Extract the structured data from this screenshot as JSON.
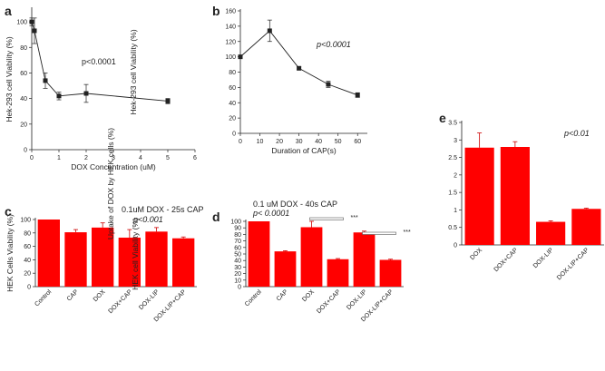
{
  "colors": {
    "bar": "#ff0000",
    "line": "#222222",
    "err": "#cc0000"
  },
  "chart_data": [
    {
      "panel": "a",
      "type": "line",
      "xlabel": "DOX Concentration (uM)",
      "ylabel": "Hek-293 cell Viability (%)",
      "xlim": [
        0,
        6
      ],
      "ylim": [
        0,
        110
      ],
      "xticks": [
        0,
        1,
        2,
        3,
        4,
        5,
        6
      ],
      "yticks": [
        0,
        20,
        40,
        60,
        80,
        100
      ],
      "x": [
        0,
        0.1,
        0.5,
        1,
        2,
        5
      ],
      "y": [
        100,
        93,
        54,
        42,
        44,
        38
      ],
      "err": [
        3,
        10,
        6,
        3,
        7,
        2
      ],
      "annotation": "p<0.0001"
    },
    {
      "panel": "b",
      "type": "line",
      "xlabel": "Duration of CAP(s)",
      "ylabel": "Hek-293 cell Viability (%)",
      "xlim": [
        0,
        65
      ],
      "ylim": [
        0,
        160
      ],
      "xticks": [
        0,
        10,
        20,
        30,
        40,
        50,
        60
      ],
      "yticks": [
        0,
        20,
        40,
        60,
        80,
        100,
        120,
        140,
        160
      ],
      "x": [
        0,
        15,
        30,
        45,
        60
      ],
      "y": [
        100,
        134,
        85,
        64,
        50
      ],
      "err": [
        0,
        14,
        2,
        4,
        3
      ],
      "annotation": "p<0.0001"
    },
    {
      "panel": "c",
      "type": "bar",
      "ylabel": "HEK Cells   Viability (%)",
      "ylim": [
        0,
        100
      ],
      "yticks": [
        0,
        20,
        40,
        60,
        80,
        100
      ],
      "categories": [
        "Control",
        "CAP",
        "DOX",
        "DOX+CAP",
        "DOX-LIP",
        "DOX-LIP+CAP"
      ],
      "values": [
        100,
        81,
        88,
        73,
        82,
        72
      ],
      "err": [
        0,
        4,
        7,
        12,
        6,
        2
      ],
      "annotation_title": "0.1uM DOX - 25s CAP",
      "annotation": "p<0.001"
    },
    {
      "panel": "d",
      "type": "bar",
      "ylabel": "HEK cell Viability (%)",
      "ylim": [
        0,
        100
      ],
      "yticks": [
        0,
        10,
        20,
        30,
        40,
        50,
        60,
        70,
        80,
        90,
        100
      ],
      "categories": [
        "Control",
        "CAP",
        "DOX",
        "DOX+CAP",
        "DOX-LIP",
        "DOX-LIP+CAP"
      ],
      "values": [
        100,
        54,
        91,
        42,
        83,
        41
      ],
      "err": [
        0,
        1,
        9,
        1,
        2,
        1
      ],
      "annotation_title": "0.1 uM DOX - 40s CAP",
      "annotation": "p< 0.0001",
      "sig": [
        {
          "from": 2,
          "to": 3,
          "label": "***"
        },
        {
          "from": 4,
          "to": 5,
          "label": "***"
        }
      ]
    },
    {
      "panel": "e",
      "type": "bar",
      "ylabel": "Uptake of DOX by HEK cells (%)",
      "ylim": [
        0,
        3.5
      ],
      "yticks": [
        0,
        0.5,
        1,
        1.5,
        2,
        2.5,
        3,
        3.5
      ],
      "categories": [
        "DOX",
        "DOX+CAP",
        "DOX-LIP",
        "DOX-LIP+CAP"
      ],
      "values": [
        2.78,
        2.8,
        0.66,
        1.03
      ],
      "err": [
        0.42,
        0.15,
        0.03,
        0.02
      ],
      "annotation": "p<0.01"
    }
  ]
}
